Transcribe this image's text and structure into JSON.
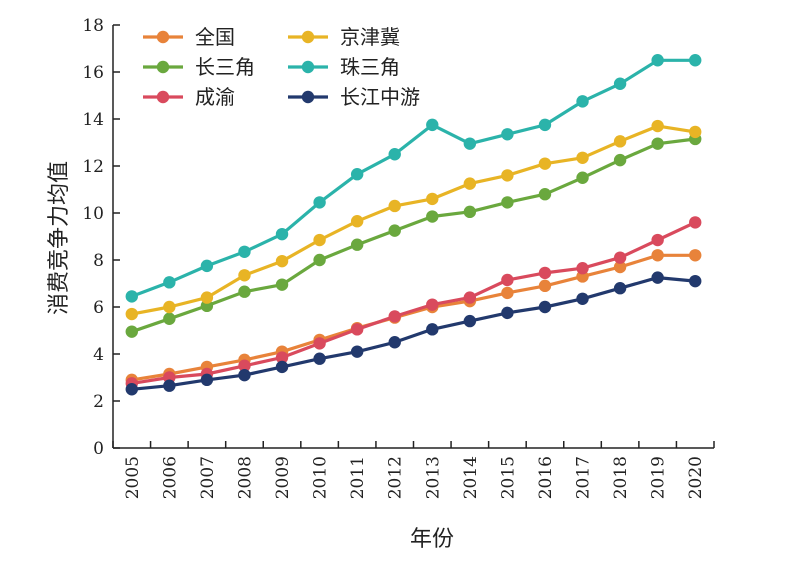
{
  "chart_data": {
    "type": "line",
    "xlabel": "年份",
    "ylabel": "消费竞争力均值",
    "ylim": [
      0,
      18
    ],
    "yticks": [
      0,
      2,
      4,
      6,
      8,
      10,
      12,
      14,
      16,
      18
    ],
    "grid": false,
    "legend_position": "top-left",
    "x": [
      "2005",
      "2006",
      "2007",
      "2008",
      "2009",
      "2010",
      "2011",
      "2012",
      "2013",
      "2014",
      "2015",
      "2016",
      "2017",
      "2018",
      "2019",
      "2020"
    ],
    "series": [
      {
        "name": "全国",
        "color": "#e8833a",
        "values": [
          2.9,
          3.15,
          3.45,
          3.75,
          4.1,
          4.6,
          5.1,
          5.55,
          6.0,
          6.25,
          6.6,
          6.9,
          7.3,
          7.7,
          8.2,
          8.2
        ]
      },
      {
        "name": "长三角",
        "color": "#6aa83e",
        "values": [
          4.95,
          5.5,
          6.05,
          6.65,
          6.95,
          8.0,
          8.65,
          9.25,
          9.85,
          10.05,
          10.45,
          10.8,
          11.5,
          12.25,
          12.95,
          13.15
        ]
      },
      {
        "name": "成渝",
        "color": "#d94a5d",
        "values": [
          2.75,
          3.0,
          3.15,
          3.5,
          3.85,
          4.45,
          5.05,
          5.6,
          6.1,
          6.4,
          7.15,
          7.45,
          7.65,
          8.1,
          8.85,
          9.6
        ]
      },
      {
        "name": "京津冀",
        "color": "#e8b425",
        "values": [
          5.7,
          6.0,
          6.4,
          7.35,
          7.95,
          8.85,
          9.65,
          10.3,
          10.6,
          11.25,
          11.6,
          12.1,
          12.35,
          13.05,
          13.7,
          13.45
        ]
      },
      {
        "name": "珠三角",
        "color": "#2bb3aa",
        "values": [
          6.45,
          7.05,
          7.75,
          8.35,
          9.1,
          10.45,
          11.65,
          12.5,
          13.75,
          12.95,
          13.35,
          13.75,
          14.75,
          15.5,
          16.5,
          16.5
        ]
      },
      {
        "name": "长江中游",
        "color": "#22396d",
        "values": [
          2.5,
          2.65,
          2.9,
          3.1,
          3.45,
          3.8,
          4.1,
          4.5,
          5.05,
          5.4,
          5.75,
          6.0,
          6.35,
          6.8,
          7.25,
          7.1
        ]
      }
    ]
  }
}
